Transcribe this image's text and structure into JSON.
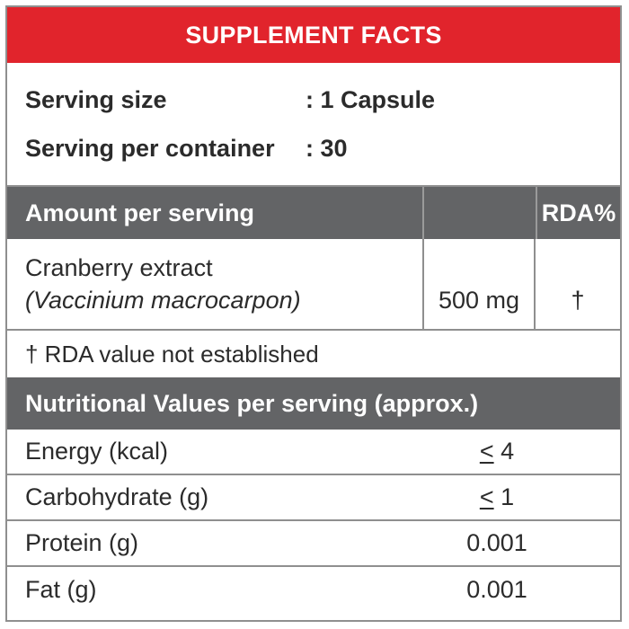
{
  "title": "SUPPLEMENT FACTS",
  "serving": {
    "size_label": "Serving size",
    "size_value": ": 1 Capsule",
    "per_container_label": "Serving per container",
    "per_container_value": ": 30"
  },
  "amount_header": {
    "label": "Amount per serving",
    "rda_label": "RDA%"
  },
  "ingredient": {
    "name": "Cranberry extract",
    "latin": "(Vaccinium macrocarpon)",
    "amount": "500 mg",
    "rda": "†"
  },
  "footnote": "† RDA value not established",
  "nutrition": {
    "header": "Nutritional Values per serving (approx.)",
    "rows": [
      {
        "name": "Energy (kcal)",
        "symbol": "<",
        "value": "4"
      },
      {
        "name": "Carbohydrate (g)",
        "symbol": "<",
        "value": "1"
      },
      {
        "name": "Protein (g)",
        "value": "0.001"
      },
      {
        "name": "Fat (g)",
        "value": "0.001"
      }
    ]
  }
}
